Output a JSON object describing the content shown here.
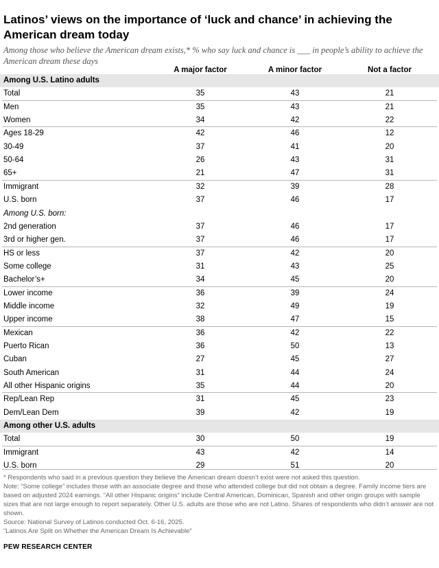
{
  "title": "Latinos’ views on the importance of ‘luck and chance’ in achieving the American dream today",
  "subtitle": "Among those who believe the American dream exists,* % who say luck and chance is ___ in people’s ability to achieve the American dream these days",
  "columns": [
    "A major factor",
    "A minor factor",
    "Not a factor"
  ],
  "chart_data": {
    "type": "table",
    "title": "Latinos’ views on the importance of ‘luck and chance’ in achieving the American dream today",
    "columns": [
      "A major factor",
      "A minor factor",
      "Not a factor"
    ],
    "rows": [
      {
        "kind": "section",
        "label": "Among U.S. Latino adults"
      },
      {
        "kind": "data",
        "label": "Total",
        "values": [
          35,
          43,
          21
        ],
        "group_break": true
      },
      {
        "kind": "data",
        "label": "Men",
        "values": [
          35,
          43,
          21
        ]
      },
      {
        "kind": "data",
        "label": "Women",
        "values": [
          34,
          42,
          22
        ],
        "group_break": true
      },
      {
        "kind": "data",
        "label": "Ages 18-29",
        "values": [
          42,
          46,
          12
        ]
      },
      {
        "kind": "data",
        "label": "30-49",
        "values": [
          37,
          41,
          20
        ]
      },
      {
        "kind": "data",
        "label": "50-64",
        "values": [
          26,
          43,
          31
        ]
      },
      {
        "kind": "data",
        "label": "65+",
        "values": [
          21,
          47,
          31
        ],
        "group_break": true
      },
      {
        "kind": "data",
        "label": "Immigrant",
        "values": [
          32,
          39,
          28
        ]
      },
      {
        "kind": "data",
        "label": "U.S. born",
        "values": [
          37,
          46,
          17
        ]
      },
      {
        "kind": "subhead",
        "label": "Among U.S. born:"
      },
      {
        "kind": "data",
        "label": "2nd generation",
        "values": [
          37,
          46,
          17
        ]
      },
      {
        "kind": "data",
        "label": "3rd or higher gen.",
        "values": [
          37,
          46,
          17
        ],
        "group_break": true
      },
      {
        "kind": "data",
        "label": "HS or less",
        "values": [
          37,
          42,
          20
        ]
      },
      {
        "kind": "data",
        "label": "Some college",
        "values": [
          31,
          43,
          25
        ]
      },
      {
        "kind": "data",
        "label": "Bachelor’s+",
        "values": [
          34,
          45,
          20
        ],
        "group_break": true
      },
      {
        "kind": "data",
        "label": "Lower income",
        "values": [
          36,
          39,
          24
        ]
      },
      {
        "kind": "data",
        "label": "Middle income",
        "values": [
          32,
          49,
          19
        ]
      },
      {
        "kind": "data",
        "label": "Upper income",
        "values": [
          38,
          47,
          15
        ],
        "group_break": true
      },
      {
        "kind": "data",
        "label": "Mexican",
        "values": [
          36,
          42,
          22
        ]
      },
      {
        "kind": "data",
        "label": "Puerto Rican",
        "values": [
          36,
          50,
          13
        ]
      },
      {
        "kind": "data",
        "label": "Cuban",
        "values": [
          27,
          45,
          27
        ]
      },
      {
        "kind": "data",
        "label": "South American",
        "values": [
          31,
          44,
          24
        ]
      },
      {
        "kind": "data",
        "label": "All other Hispanic origins",
        "values": [
          35,
          44,
          20
        ],
        "group_break": true
      },
      {
        "kind": "data",
        "label": "Rep/Lean Rep",
        "values": [
          31,
          45,
          23
        ]
      },
      {
        "kind": "data",
        "label": "Dem/Lean Dem",
        "values": [
          39,
          42,
          19
        ]
      },
      {
        "kind": "section",
        "label": "Among other U.S. adults"
      },
      {
        "kind": "data",
        "label": "Total",
        "values": [
          30,
          50,
          19
        ],
        "group_break": true
      },
      {
        "kind": "data",
        "label": "Immigrant",
        "values": [
          43,
          42,
          14
        ]
      },
      {
        "kind": "data",
        "label": "U.S. born",
        "values": [
          29,
          51,
          20
        ]
      }
    ]
  },
  "footnotes": [
    "* Respondents who said in a previous question they believe the American dream doesn’t exist were not asked this question.",
    "Note: “Some college” includes those with an associate degree and those who attended college but did not obtain a degree. Family income tiers are based on adjusted 2024 earnings. “All other Hispanic origins” include Central American, Dominican, Spanish and other origin groups with sample sizes that are not large enough to report separately. Other U.S. adults are those who are not Latino. Shares of respondents who didn’t answer are not shown.",
    "Source: National Survey of Latinos conducted Oct. 6-16, 2025.",
    "“Latinos Are Split on Whether the American Dream Is Achievable”"
  ],
  "brand": "PEW RESEARCH CENTER"
}
